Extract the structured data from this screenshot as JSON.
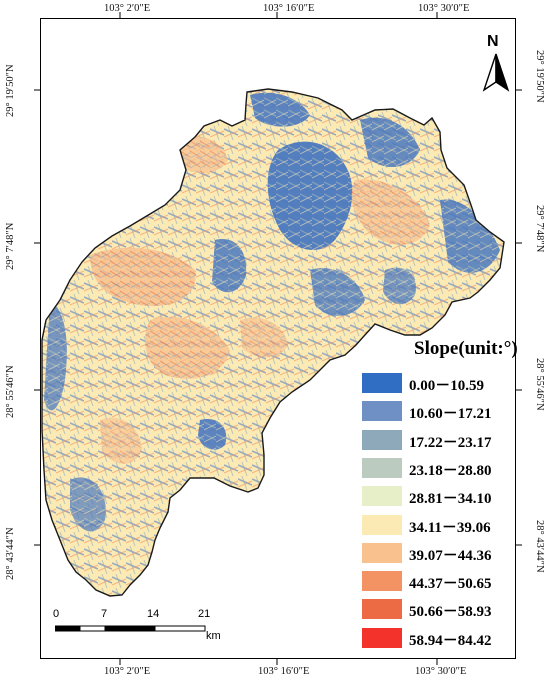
{
  "map": {
    "top_coords": [
      "103° 2′0″E",
      "103° 16′0″E",
      "103° 30′0″E"
    ],
    "bottom_coords": [
      "103° 2′0″E",
      "103° 16′0″E",
      "103° 30′0″E"
    ],
    "left_coords": [
      "29° 19′50″N",
      "29° 7′48″N",
      "28° 55′46″N",
      "28° 43′44″N"
    ],
    "right_coords": [
      "29° 19′50″N",
      "29° 7′48″N",
      "28° 55′46″N",
      "28° 43′44″N"
    ],
    "north_label": "N",
    "scale": {
      "ticks": [
        "0",
        "7",
        "14",
        "21"
      ],
      "unit": "km"
    }
  },
  "legend": {
    "title": "Slope(unit:°)",
    "items": [
      {
        "label": "0.00－10.59",
        "color": "#2f6ec3"
      },
      {
        "label": "10.60－17.21",
        "color": "#6f90c4"
      },
      {
        "label": "17.22－23.17",
        "color": "#8ea9b9"
      },
      {
        "label": "23.18－28.80",
        "color": "#bccbbf"
      },
      {
        "label": "28.81－34.10",
        "color": "#e6efc7"
      },
      {
        "label": "34.11－39.06",
        "color": "#fbeab3"
      },
      {
        "label": "39.07－44.36",
        "color": "#f8c18e"
      },
      {
        "label": "44.37－50.65",
        "color": "#f39363"
      },
      {
        "label": "50.66－58.93",
        "color": "#ec6b44"
      },
      {
        "label": "58.94－84.42",
        "color": "#f2322b"
      }
    ]
  }
}
